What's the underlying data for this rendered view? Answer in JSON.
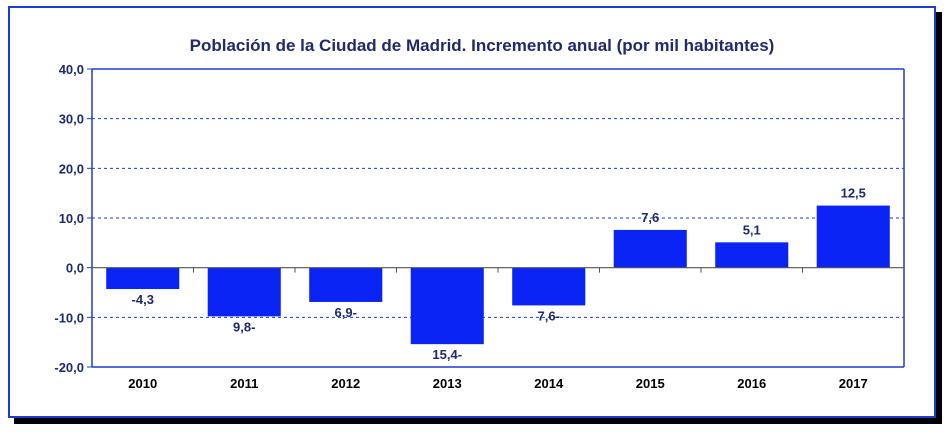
{
  "chart_data": {
    "type": "bar",
    "title": "Población de la Ciudad de Madrid. Incremento anual (por mil habitantes)",
    "xlabel": "",
    "ylabel": "",
    "categories": [
      "2010",
      "2011",
      "2012",
      "2013",
      "2014",
      "2015",
      "2016",
      "2017"
    ],
    "values": [
      -4.3,
      -9.8,
      -6.9,
      -15.4,
      -7.6,
      7.6,
      5.1,
      12.5
    ],
    "value_labels": [
      "-4,3",
      "9,8-",
      "6,9-",
      "15,4-",
      "7,6-",
      "7,6",
      "5,1",
      "12,5"
    ],
    "ylim": [
      -20,
      40
    ],
    "yticks": [
      40,
      30,
      20,
      10,
      0,
      -10,
      -20
    ],
    "ytick_labels": [
      "40,0",
      "30,0",
      "20,0",
      "10,0",
      "0,0",
      "-10,0",
      "-20,0"
    ],
    "grid": "horizontal dashed",
    "legend": "none",
    "colors": {
      "bar": "#0a24f5",
      "frame": "#1a3fd0",
      "plot_border": "#1a3fd0",
      "gridline": "#1a3fd0",
      "text": "#1f2a6e"
    }
  }
}
